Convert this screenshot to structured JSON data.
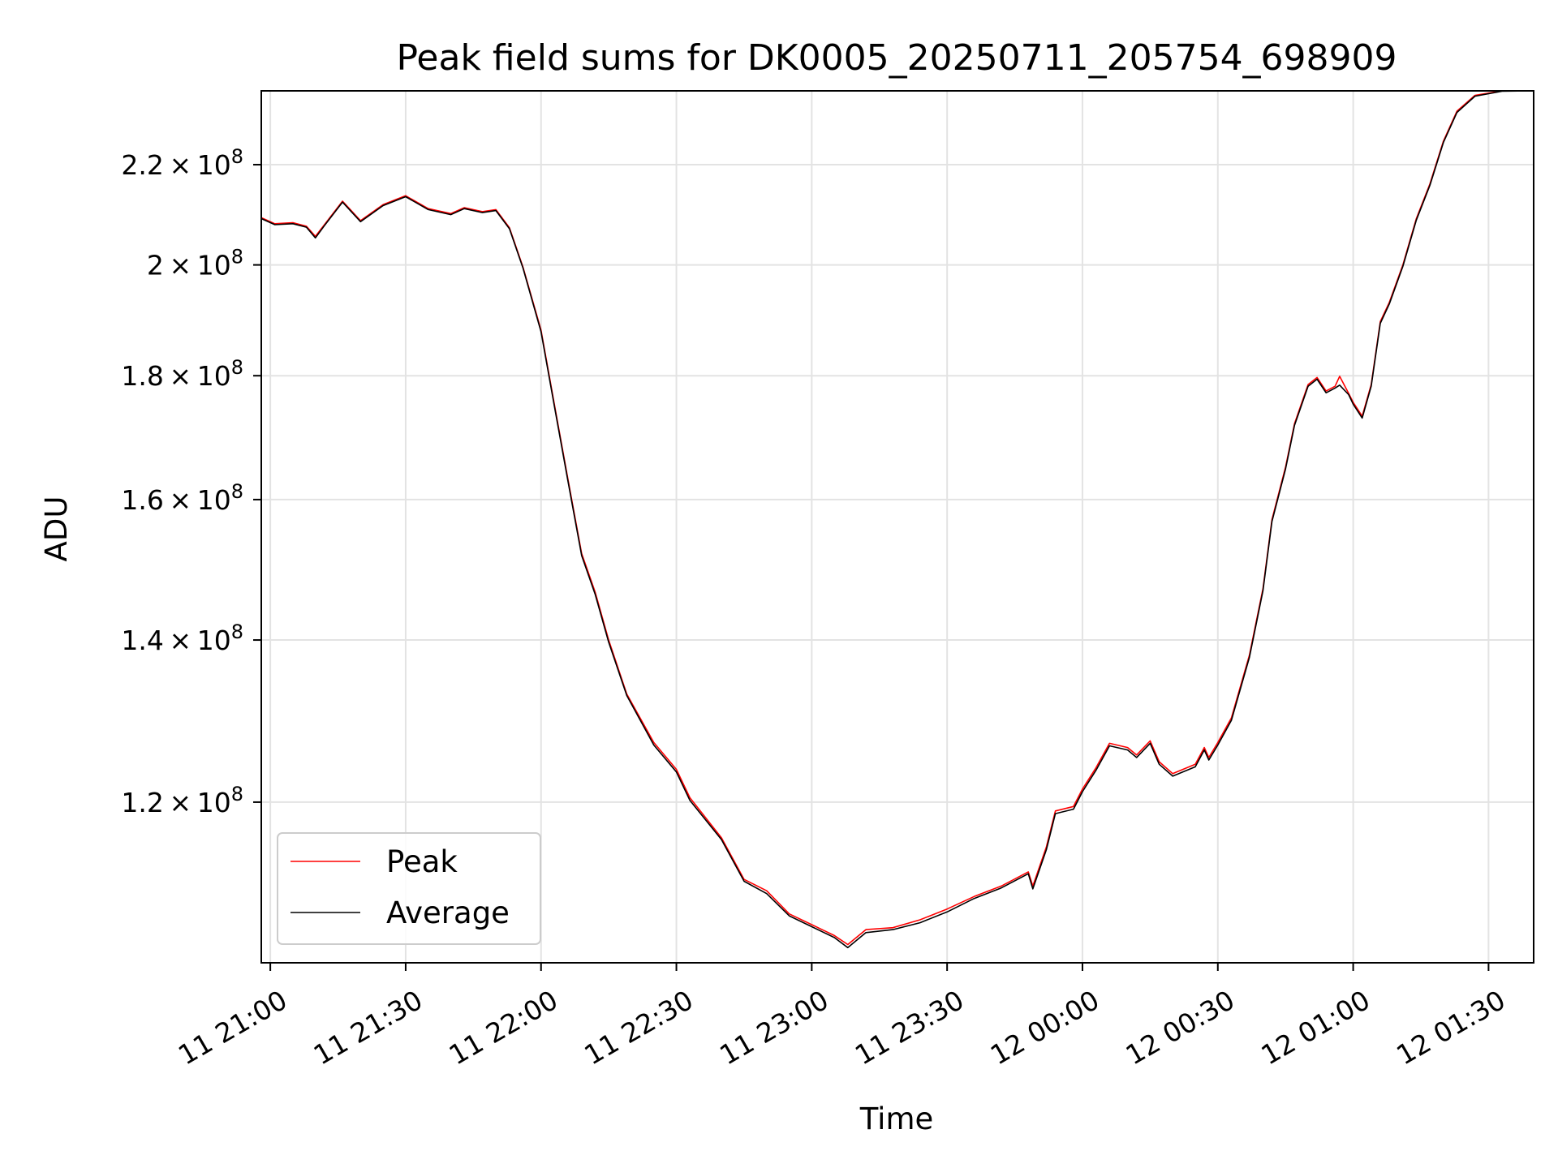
{
  "chart_data": {
    "type": "line",
    "title": "Peak field sums for DK0005_20250711_205754_698909",
    "xlabel": "Time",
    "ylabel": "ADU",
    "yscale": "log",
    "grid": true,
    "legend_position": "lower-left",
    "xlim": [
      "2025-07-11 20:58",
      "2025-07-12 01:40"
    ],
    "ylim": [
      103000000,
      236000000
    ],
    "x_ticks": [
      {
        "value": "2025-07-11 21:00",
        "label": "11 21:00"
      },
      {
        "value": "2025-07-11 21:30",
        "label": "11 21:30"
      },
      {
        "value": "2025-07-11 22:00",
        "label": "11 22:00"
      },
      {
        "value": "2025-07-11 22:30",
        "label": "11 22:30"
      },
      {
        "value": "2025-07-11 23:00",
        "label": "11 23:00"
      },
      {
        "value": "2025-07-11 23:30",
        "label": "11 23:30"
      },
      {
        "value": "2025-07-12 00:00",
        "label": "12 00:00"
      },
      {
        "value": "2025-07-12 00:30",
        "label": "12 00:30"
      },
      {
        "value": "2025-07-12 01:00",
        "label": "12 01:00"
      },
      {
        "value": "2025-07-12 01:30",
        "label": "12 01:30"
      }
    ],
    "y_ticks": [
      {
        "value": 120000000,
        "mantissa": "1.2",
        "exponent": "8"
      },
      {
        "value": 140000000,
        "mantissa": "1.4",
        "exponent": "8"
      },
      {
        "value": 160000000,
        "mantissa": "1.6",
        "exponent": "8"
      },
      {
        "value": 180000000,
        "mantissa": "1.8",
        "exponent": "8"
      },
      {
        "value": 200000000,
        "mantissa": "2",
        "exponent": "8"
      },
      {
        "value": 220000000,
        "mantissa": "2.2",
        "exponent": "8"
      }
    ],
    "series": [
      {
        "name": "Peak",
        "color": "#ff0000",
        "points": [
          [
            "2025-07-11 20:58",
            209200000
          ],
          [
            "2025-07-11 21:01",
            208000000
          ],
          [
            "2025-07-11 21:05",
            208200000
          ],
          [
            "2025-07-11 21:08",
            207500000
          ],
          [
            "2025-07-11 21:10",
            205500000
          ],
          [
            "2025-07-11 21:12",
            207800000
          ],
          [
            "2025-07-11 21:16",
            212500000
          ],
          [
            "2025-07-11 21:20",
            208600000
          ],
          [
            "2025-07-11 21:25",
            211800000
          ],
          [
            "2025-07-11 21:30",
            213600000
          ],
          [
            "2025-07-11 21:35",
            211000000
          ],
          [
            "2025-07-11 21:40",
            210000000
          ],
          [
            "2025-07-11 21:43",
            211200000
          ],
          [
            "2025-07-11 21:47",
            210400000
          ],
          [
            "2025-07-11 21:50",
            210800000
          ],
          [
            "2025-07-11 21:53",
            207200000
          ],
          [
            "2025-07-11 21:56",
            199600000
          ],
          [
            "2025-07-11 22:00",
            188000000
          ],
          [
            "2025-07-11 22:03",
            175000000
          ],
          [
            "2025-07-11 22:06",
            163000000
          ],
          [
            "2025-07-11 22:09",
            152000000
          ],
          [
            "2025-07-11 22:12",
            146500000
          ],
          [
            "2025-07-11 22:15",
            140000000
          ],
          [
            "2025-07-11 22:19",
            133000000
          ],
          [
            "2025-07-11 22:25",
            127000000
          ],
          [
            "2025-07-11 22:30",
            123800000
          ],
          [
            "2025-07-11 22:33",
            120500000
          ],
          [
            "2025-07-11 22:40",
            116000000
          ],
          [
            "2025-07-11 22:45",
            111500000
          ],
          [
            "2025-07-11 22:50",
            110300000
          ],
          [
            "2025-07-11 22:55",
            107900000
          ],
          [
            "2025-07-11 23:00",
            106800000
          ],
          [
            "2025-07-11 23:05",
            105700000
          ],
          [
            "2025-07-11 23:08",
            104800000
          ],
          [
            "2025-07-11 23:12",
            106300000
          ],
          [
            "2025-07-11 23:18",
            106500000
          ],
          [
            "2025-07-11 23:24",
            107300000
          ],
          [
            "2025-07-11 23:30",
            108400000
          ],
          [
            "2025-07-11 23:36",
            109700000
          ],
          [
            "2025-07-11 23:42",
            110800000
          ],
          [
            "2025-07-11 23:48",
            112300000
          ],
          [
            "2025-07-11 23:49",
            110800000
          ],
          [
            "2025-07-11 23:52",
            115000000
          ],
          [
            "2025-07-11 23:54",
            119000000
          ],
          [
            "2025-07-11 23:58",
            119500000
          ],
          [
            "2025-07-12 00:00",
            121500000
          ],
          [
            "2025-07-12 00:03",
            124000000
          ],
          [
            "2025-07-12 00:06",
            126900000
          ],
          [
            "2025-07-12 00:10",
            126400000
          ],
          [
            "2025-07-12 00:12",
            125500000
          ],
          [
            "2025-07-12 00:15",
            127200000
          ],
          [
            "2025-07-12 00:17",
            124700000
          ],
          [
            "2025-07-12 00:20",
            123300000
          ],
          [
            "2025-07-12 00:25",
            124400000
          ],
          [
            "2025-07-12 00:27",
            126400000
          ],
          [
            "2025-07-12 00:28",
            125200000
          ],
          [
            "2025-07-12 00:30",
            127000000
          ],
          [
            "2025-07-12 00:33",
            130000000
          ],
          [
            "2025-07-12 00:37",
            138000000
          ],
          [
            "2025-07-12 00:40",
            147000000
          ],
          [
            "2025-07-12 00:42",
            157000000
          ],
          [
            "2025-07-12 00:45",
            165000000
          ],
          [
            "2025-07-12 00:47",
            172000000
          ],
          [
            "2025-07-12 00:50",
            178500000
          ],
          [
            "2025-07-12 00:52",
            179700000
          ],
          [
            "2025-07-12 00:54",
            177400000
          ],
          [
            "2025-07-12 00:56",
            178200000
          ],
          [
            "2025-07-12 00:57",
            179900000
          ],
          [
            "2025-07-12 00:59",
            177000000
          ],
          [
            "2025-07-12 01:00",
            175500000
          ],
          [
            "2025-07-12 01:02",
            173200000
          ],
          [
            "2025-07-12 01:04",
            178500000
          ],
          [
            "2025-07-12 01:06",
            189500000
          ],
          [
            "2025-07-12 01:08",
            193000000
          ],
          [
            "2025-07-12 01:11",
            200000000
          ],
          [
            "2025-07-12 01:14",
            209000000
          ],
          [
            "2025-07-12 01:17",
            216000000
          ],
          [
            "2025-07-12 01:20",
            225000000
          ],
          [
            "2025-07-12 01:23",
            231500000
          ],
          [
            "2025-07-12 01:27",
            235000000
          ],
          [
            "2025-07-12 01:33",
            236000000
          ],
          [
            "2025-07-12 01:40",
            236000000
          ]
        ]
      },
      {
        "name": "Average",
        "color": "#000000",
        "points": [
          [
            "2025-07-11 20:58",
            209000000
          ],
          [
            "2025-07-11 21:01",
            207800000
          ],
          [
            "2025-07-11 21:05",
            208000000
          ],
          [
            "2025-07-11 21:08",
            207300000
          ],
          [
            "2025-07-11 21:10",
            205200000
          ],
          [
            "2025-07-11 21:12",
            207600000
          ],
          [
            "2025-07-11 21:16",
            212300000
          ],
          [
            "2025-07-11 21:20",
            208400000
          ],
          [
            "2025-07-11 21:25",
            211600000
          ],
          [
            "2025-07-11 21:30",
            213400000
          ],
          [
            "2025-07-11 21:35",
            210800000
          ],
          [
            "2025-07-11 21:40",
            209800000
          ],
          [
            "2025-07-11 21:43",
            211000000
          ],
          [
            "2025-07-11 21:47",
            210200000
          ],
          [
            "2025-07-11 21:50",
            210600000
          ],
          [
            "2025-07-11 21:53",
            207000000
          ],
          [
            "2025-07-11 21:56",
            199400000
          ],
          [
            "2025-07-11 22:00",
            187700000
          ],
          [
            "2025-07-11 22:03",
            174700000
          ],
          [
            "2025-07-11 22:06",
            162700000
          ],
          [
            "2025-07-11 22:09",
            151700000
          ],
          [
            "2025-07-11 22:12",
            146200000
          ],
          [
            "2025-07-11 22:15",
            139700000
          ],
          [
            "2025-07-11 22:19",
            132800000
          ],
          [
            "2025-07-11 22:25",
            126700000
          ],
          [
            "2025-07-11 22:30",
            123500000
          ],
          [
            "2025-07-11 22:33",
            120200000
          ],
          [
            "2025-07-11 22:40",
            115800000
          ],
          [
            "2025-07-11 22:45",
            111300000
          ],
          [
            "2025-07-11 22:50",
            110000000
          ],
          [
            "2025-07-11 22:55",
            107700000
          ],
          [
            "2025-07-11 23:00",
            106600000
          ],
          [
            "2025-07-11 23:05",
            105500000
          ],
          [
            "2025-07-11 23:08",
            104500000
          ],
          [
            "2025-07-11 23:12",
            106000000
          ],
          [
            "2025-07-11 23:18",
            106300000
          ],
          [
            "2025-07-11 23:24",
            107000000
          ],
          [
            "2025-07-11 23:30",
            108100000
          ],
          [
            "2025-07-11 23:36",
            109500000
          ],
          [
            "2025-07-11 23:42",
            110600000
          ],
          [
            "2025-07-11 23:48",
            112100000
          ],
          [
            "2025-07-11 23:49",
            110500000
          ],
          [
            "2025-07-11 23:52",
            114700000
          ],
          [
            "2025-07-11 23:54",
            118700000
          ],
          [
            "2025-07-11 23:58",
            119200000
          ],
          [
            "2025-07-12 00:00",
            121200000
          ],
          [
            "2025-07-12 00:03",
            123700000
          ],
          [
            "2025-07-12 00:06",
            126600000
          ],
          [
            "2025-07-12 00:10",
            126100000
          ],
          [
            "2025-07-12 00:12",
            125200000
          ],
          [
            "2025-07-12 00:15",
            126900000
          ],
          [
            "2025-07-12 00:17",
            124400000
          ],
          [
            "2025-07-12 00:20",
            123000000
          ],
          [
            "2025-07-12 00:25",
            124100000
          ],
          [
            "2025-07-12 00:27",
            126100000
          ],
          [
            "2025-07-12 00:28",
            124900000
          ],
          [
            "2025-07-12 00:30",
            126700000
          ],
          [
            "2025-07-12 00:33",
            129700000
          ],
          [
            "2025-07-12 00:37",
            137700000
          ],
          [
            "2025-07-12 00:40",
            146700000
          ],
          [
            "2025-07-12 00:42",
            156700000
          ],
          [
            "2025-07-12 00:45",
            164700000
          ],
          [
            "2025-07-12 00:47",
            171700000
          ],
          [
            "2025-07-12 00:50",
            178200000
          ],
          [
            "2025-07-12 00:52",
            179400000
          ],
          [
            "2025-07-12 00:54",
            177100000
          ],
          [
            "2025-07-12 00:56",
            177900000
          ],
          [
            "2025-07-12 00:57",
            178400000
          ],
          [
            "2025-07-12 00:59",
            176800000
          ],
          [
            "2025-07-12 01:00",
            175200000
          ],
          [
            "2025-07-12 01:02",
            172900000
          ],
          [
            "2025-07-12 01:04",
            178200000
          ],
          [
            "2025-07-12 01:06",
            189200000
          ],
          [
            "2025-07-12 01:08",
            192700000
          ],
          [
            "2025-07-12 01:11",
            199700000
          ],
          [
            "2025-07-12 01:14",
            208700000
          ],
          [
            "2025-07-12 01:17",
            215700000
          ],
          [
            "2025-07-12 01:20",
            224700000
          ],
          [
            "2025-07-12 01:23",
            231200000
          ],
          [
            "2025-07-12 01:27",
            234800000
          ],
          [
            "2025-07-12 01:33",
            235900000
          ],
          [
            "2025-07-12 01:40",
            236000000
          ]
        ]
      }
    ]
  }
}
